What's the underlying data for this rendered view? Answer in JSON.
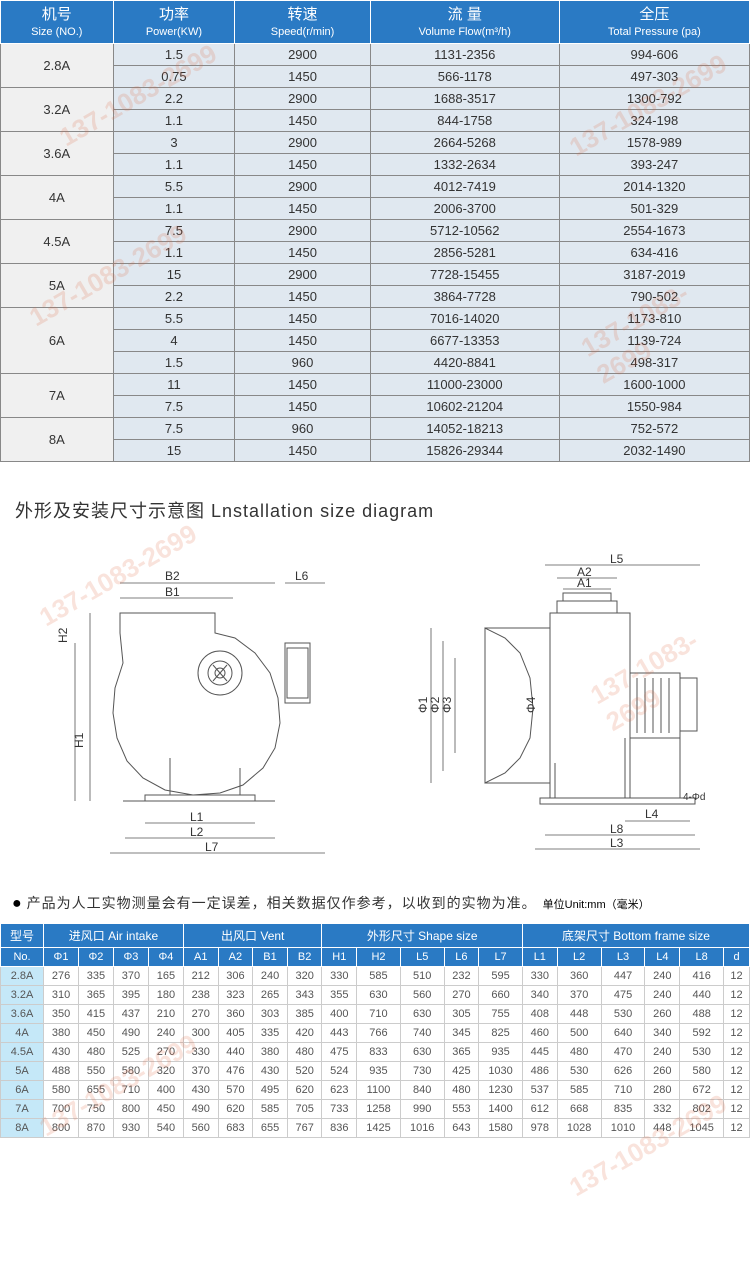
{
  "specs_header": [
    {
      "cn": "机号",
      "en": "Size (NO.)"
    },
    {
      "cn": "功率",
      "en": "Power(KW)"
    },
    {
      "cn": "转速",
      "en": "Speed(r/min)"
    },
    {
      "cn": "流 量",
      "en": "Volume Flow(m³/h)"
    },
    {
      "cn": "全压",
      "en": "Total Pressure (pa)"
    }
  ],
  "specs_rows": [
    {
      "size": "2.8A",
      "rows": [
        {
          "power": "1.5",
          "speed": "2900",
          "flow": "1131-2356",
          "pressure": "994-606"
        },
        {
          "power": "0.75",
          "speed": "1450",
          "flow": "566-1178",
          "pressure": "497-303"
        }
      ]
    },
    {
      "size": "3.2A",
      "rows": [
        {
          "power": "2.2",
          "speed": "2900",
          "flow": "1688-3517",
          "pressure": "1300-792"
        },
        {
          "power": "1.1",
          "speed": "1450",
          "flow": "844-1758",
          "pressure": "324-198"
        }
      ]
    },
    {
      "size": "3.6A",
      "rows": [
        {
          "power": "3",
          "speed": "2900",
          "flow": "2664-5268",
          "pressure": "1578-989"
        },
        {
          "power": "1.1",
          "speed": "1450",
          "flow": "1332-2634",
          "pressure": "393-247"
        }
      ]
    },
    {
      "size": "4A",
      "rows": [
        {
          "power": "5.5",
          "speed": "2900",
          "flow": "4012-7419",
          "pressure": "2014-1320"
        },
        {
          "power": "1.1",
          "speed": "1450",
          "flow": "2006-3700",
          "pressure": "501-329"
        }
      ]
    },
    {
      "size": "4.5A",
      "rows": [
        {
          "power": "7.5",
          "speed": "2900",
          "flow": "5712-10562",
          "pressure": "2554-1673"
        },
        {
          "power": "1.1",
          "speed": "1450",
          "flow": "2856-5281",
          "pressure": "634-416"
        }
      ]
    },
    {
      "size": "5A",
      "rows": [
        {
          "power": "15",
          "speed": "2900",
          "flow": "7728-15455",
          "pressure": "3187-2019"
        },
        {
          "power": "2.2",
          "speed": "1450",
          "flow": "3864-7728",
          "pressure": "790-502"
        }
      ]
    },
    {
      "size": "6A",
      "rows": [
        {
          "power": "5.5",
          "speed": "1450",
          "flow": "7016-14020",
          "pressure": "1173-810"
        },
        {
          "power": "4",
          "speed": "1450",
          "flow": "6677-13353",
          "pressure": "1139-724"
        },
        {
          "power": "1.5",
          "speed": "960",
          "flow": "4420-8841",
          "pressure": "498-317"
        }
      ]
    },
    {
      "size": "7A",
      "rows": [
        {
          "power": "11",
          "speed": "1450",
          "flow": "11000-23000",
          "pressure": "1600-1000"
        },
        {
          "power": "7.5",
          "speed": "1450",
          "flow": "10602-21204",
          "pressure": "1550-984"
        }
      ]
    },
    {
      "size": "8A",
      "rows": [
        {
          "power": "7.5",
          "speed": "960",
          "flow": "14052-18213",
          "pressure": "752-572"
        },
        {
          "power": "15",
          "speed": "1450",
          "flow": "15826-29344",
          "pressure": "2032-1490"
        }
      ]
    }
  ],
  "diagram_title": "外形及安装尺寸示意图  Lnstallation size diagram",
  "diagram_labels": {
    "left": [
      "B2",
      "B1",
      "L6",
      "H2",
      "H1",
      "L1",
      "L2",
      "L7"
    ],
    "right": [
      "L5",
      "A2",
      "A1",
      "Φ3",
      "Φ2",
      "Φ1",
      "Φ4",
      "L4",
      "L8",
      "L3",
      "4-Φd"
    ]
  },
  "note_bullet": "●",
  "note_text": "产品为人工实物测量会有一定误差，相关数据仅作参考，以收到的实物为准。",
  "note_unit": "单位Unit:mm（毫米）",
  "dim_header_groups": [
    {
      "label": "型号",
      "en": "No.",
      "span": 1,
      "cols": [
        ""
      ]
    },
    {
      "label": "进风口 Air intake",
      "span": 4,
      "cols": [
        "Φ1",
        "Φ2",
        "Φ3",
        "Φ4"
      ]
    },
    {
      "label": "出风口 Vent",
      "span": 4,
      "cols": [
        "A1",
        "A2",
        "B1",
        "B2"
      ]
    },
    {
      "label": "外形尺寸 Shape size",
      "span": 5,
      "cols": [
        "H1",
        "H2",
        "L5",
        "L6",
        "L7"
      ]
    },
    {
      "label": "底架尺寸 Bottom frame size",
      "span": 6,
      "cols": [
        "L1",
        "L2",
        "L3",
        "L4",
        "L8",
        "d"
      ]
    }
  ],
  "dim_rows": [
    {
      "no": "2.8A",
      "v": [
        "276",
        "335",
        "370",
        "165",
        "212",
        "306",
        "240",
        "320",
        "330",
        "585",
        "510",
        "232",
        "595",
        "330",
        "360",
        "447",
        "240",
        "416",
        "12"
      ]
    },
    {
      "no": "3.2A",
      "v": [
        "310",
        "365",
        "395",
        "180",
        "238",
        "323",
        "265",
        "343",
        "355",
        "630",
        "560",
        "270",
        "660",
        "340",
        "370",
        "475",
        "240",
        "440",
        "12"
      ]
    },
    {
      "no": "3.6A",
      "v": [
        "350",
        "415",
        "437",
        "210",
        "270",
        "360",
        "303",
        "385",
        "400",
        "710",
        "630",
        "305",
        "755",
        "408",
        "448",
        "530",
        "260",
        "488",
        "12"
      ]
    },
    {
      "no": "4A",
      "v": [
        "380",
        "450",
        "490",
        "240",
        "300",
        "405",
        "335",
        "420",
        "443",
        "766",
        "740",
        "345",
        "825",
        "460",
        "500",
        "640",
        "340",
        "592",
        "12"
      ]
    },
    {
      "no": "4.5A",
      "v": [
        "430",
        "480",
        "525",
        "270",
        "330",
        "440",
        "380",
        "480",
        "475",
        "833",
        "630",
        "365",
        "935",
        "445",
        "480",
        "470",
        "240",
        "530",
        "12"
      ]
    },
    {
      "no": "5A",
      "v": [
        "488",
        "550",
        "580",
        "320",
        "370",
        "476",
        "430",
        "520",
        "524",
        "935",
        "730",
        "425",
        "1030",
        "486",
        "530",
        "626",
        "260",
        "580",
        "12"
      ]
    },
    {
      "no": "6A",
      "v": [
        "580",
        "655",
        "710",
        "400",
        "430",
        "570",
        "495",
        "620",
        "623",
        "1100",
        "840",
        "480",
        "1230",
        "537",
        "585",
        "710",
        "280",
        "672",
        "12"
      ]
    },
    {
      "no": "7A",
      "v": [
        "700",
        "750",
        "800",
        "450",
        "490",
        "620",
        "585",
        "705",
        "733",
        "1258",
        "990",
        "553",
        "1400",
        "612",
        "668",
        "835",
        "332",
        "802",
        "12"
      ]
    },
    {
      "no": "8A",
      "v": [
        "800",
        "870",
        "930",
        "540",
        "560",
        "683",
        "655",
        "767",
        "836",
        "1425",
        "1016",
        "643",
        "1580",
        "978",
        "1028",
        "1010",
        "448",
        "1045",
        "12"
      ]
    }
  ],
  "watermark": "137-1083-2699",
  "colors": {
    "header_bg": "#2a7ac4",
    "cell_bg": "#e0e8f0",
    "sky": "#c5e8f8"
  }
}
